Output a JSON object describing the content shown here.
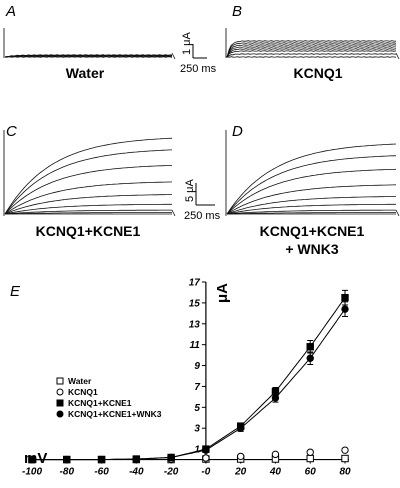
{
  "panels": [
    {
      "letter": "A",
      "caption": [
        "Water"
      ]
    },
    {
      "letter": "B",
      "caption": [
        "KCNQ1"
      ]
    },
    {
      "letter": "C",
      "caption": [
        "KCNQ1+KCNE1"
      ]
    },
    {
      "letter": "D",
      "caption": [
        "KCNQ1+KCNE1",
        "+ WNK3"
      ]
    }
  ],
  "scale_bars": {
    "top": {
      "current": "1 μA",
      "time": "250 ms"
    },
    "bottom": {
      "current": "5 μA",
      "time": "250 ms"
    }
  },
  "iv_panel_letter": "E",
  "chart_data": {
    "type": "scatter",
    "title": "",
    "xlabel": "mV",
    "ylabel": "μA",
    "xlim": [
      -100,
      80
    ],
    "ylim": [
      -1,
      17
    ],
    "x_ticks": [
      -100,
      -80,
      -60,
      -40,
      -20,
      0,
      20,
      40,
      60,
      80
    ],
    "x_tick_labels": [
      "-100",
      "-80",
      "-60",
      "-40",
      "-20",
      "-0",
      "20",
      "40",
      "60",
      "80"
    ],
    "y_ticks": [
      1,
      3,
      5,
      7,
      9,
      11,
      13,
      15,
      17
    ],
    "legend_position": "left",
    "series": [
      {
        "name": "Water",
        "marker": "open-square",
        "x": [
          -100,
          -80,
          -60,
          -40,
          -20,
          0,
          20,
          40,
          60,
          80
        ],
        "y": [
          0,
          0,
          0,
          0,
          0,
          0.05,
          0.05,
          0.05,
          0.1,
          0.1
        ]
      },
      {
        "name": "KCNQ1",
        "marker": "open-circle",
        "x": [
          -100,
          -80,
          -60,
          -40,
          -20,
          0,
          20,
          40,
          60,
          80
        ],
        "y": [
          0,
          0,
          0,
          0,
          0.05,
          0.15,
          0.3,
          0.5,
          0.7,
          0.9
        ]
      },
      {
        "name": "KCNQ1+KCNE1",
        "marker": "filled-square",
        "x": [
          -100,
          -80,
          -60,
          -40,
          -20,
          0,
          20,
          40,
          60,
          80
        ],
        "y": [
          0,
          0,
          0,
          0.05,
          0.2,
          1.0,
          3.2,
          6.5,
          10.8,
          15.5
        ],
        "error": [
          0,
          0,
          0,
          0,
          0.1,
          0.2,
          0.3,
          0.4,
          0.6,
          0.7
        ]
      },
      {
        "name": "KCNQ1+KCNE1+WNK3",
        "marker": "filled-circle",
        "x": [
          -100,
          -80,
          -60,
          -40,
          -20,
          0,
          20,
          40,
          60,
          80
        ],
        "y": [
          0,
          0,
          0,
          0.05,
          0.2,
          0.9,
          3.0,
          5.9,
          9.7,
          14.4
        ],
        "error": [
          0,
          0,
          0,
          0,
          0.1,
          0.2,
          0.3,
          0.4,
          0.6,
          0.7
        ]
      }
    ]
  }
}
